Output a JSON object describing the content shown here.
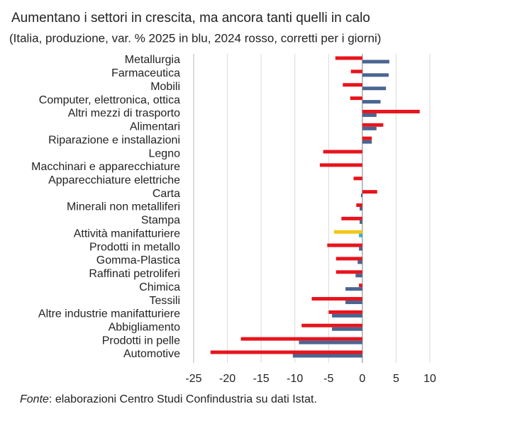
{
  "chart_data": {
    "type": "hbar",
    "title": "Aumentano i settori in crescita, ma ancora tanti quelli in calo",
    "subtitle": "(Italia, produzione, var. % 2025 in blu, 2024 rosso, corretti per i giorni)",
    "source_label": "Fonte",
    "source_text": ": elaborazioni Centro Studi Confindustria su dati Istat.",
    "categories": [
      "Metallurgia",
      "Farmaceutica",
      "Mobili",
      "Computer, elettronica, ottica",
      "Altri mezzi di trasporto",
      "Alimentari",
      "Riparazione e installazioni",
      "Legno",
      "Macchinari e apparecchiature",
      "Apparecchiature elettriche",
      "Carta",
      "Minerali non metalliferi",
      "Stampa",
      "Attività manifatturiere",
      "Prodotti in metallo",
      "Gomma-Plastica",
      "Raffinati petroliferi",
      "Chimica",
      "Tessili",
      "Altre industrie manifatturiere",
      "Abbigliamento",
      "Prodotti in pelle",
      "Automotive"
    ],
    "highlight_index": 13,
    "series": [
      {
        "color": "#e8141c",
        "highlight_color": "#f5c518",
        "values": [
          -4.0,
          -1.7,
          -2.9,
          -1.8,
          8.5,
          3.1,
          1.4,
          -5.8,
          -6.3,
          -1.3,
          2.2,
          -0.9,
          -3.1,
          -4.2,
          -5.2,
          -3.9,
          -3.9,
          -0.5,
          -7.5,
          -5.0,
          -9.0,
          -18.0,
          -22.5
        ]
      },
      {
        "color": "#4a6591",
        "highlight_color": "#2bb3c9",
        "values": [
          4.0,
          3.9,
          3.5,
          2.7,
          2.1,
          2.1,
          1.4,
          0,
          0,
          0,
          -0.2,
          -0.4,
          -0.4,
          -0.5,
          -0.5,
          -0.7,
          -1.0,
          -2.5,
          -2.5,
          -4.5,
          -4.5,
          -9.4,
          -10.3
        ]
      }
    ],
    "xlim": [
      -25,
      10
    ],
    "xticks": [
      -25,
      -20,
      -15,
      -10,
      -5,
      0,
      5,
      10
    ],
    "grid": true
  }
}
